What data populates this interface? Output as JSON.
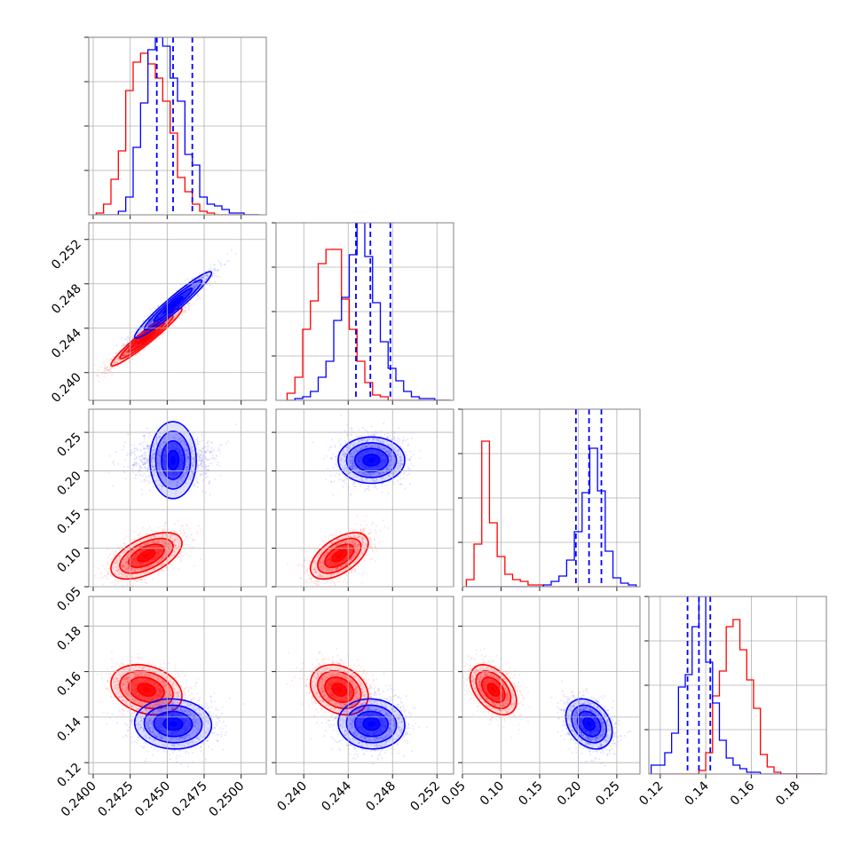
{
  "chart_data": {
    "type": "corner",
    "colors": {
      "red_sample": "#ff0000",
      "blue_sample": "#0000ff"
    },
    "params": [
      {
        "range": [
          0.2397,
          0.2517
        ],
        "ticks": [
          0.24,
          0.2425,
          0.245,
          0.2475,
          0.25
        ],
        "tick_labels": [
          "0.2400",
          "0.2425",
          "0.2450",
          "0.2475",
          "0.2500"
        ]
      },
      {
        "range": [
          0.2375,
          0.2535
        ],
        "ticks": [
          0.24,
          0.244,
          0.248,
          0.252
        ],
        "tick_labels": [
          "0.240",
          "0.244",
          "0.248",
          "0.252"
        ]
      },
      {
        "range": [
          0.05,
          0.28
        ],
        "ticks": [
          0.05,
          0.1,
          0.15,
          0.2,
          0.25
        ],
        "tick_labels": [
          "0.05",
          "0.10",
          "0.15",
          "0.20",
          "0.25"
        ]
      },
      {
        "range": [
          0.115,
          0.193
        ],
        "ticks": [
          0.12,
          0.14,
          0.16,
          0.18
        ],
        "tick_labels": [
          "0.12",
          "0.14",
          "0.16",
          "0.18"
        ]
      }
    ],
    "samples": [
      {
        "name": "",
        "color": "#ff0000",
        "mean": [
          0.2436,
          0.2432,
          0.09,
          0.152
        ],
        "sd": [
          0.0012,
          0.0013,
          0.015,
          0.0055
        ]
      },
      {
        "name": "",
        "color": "#0000ff",
        "mean": [
          0.2454,
          0.2461,
          0.214,
          0.137
        ],
        "sd": [
          0.0013,
          0.0015,
          0.015,
          0.0055
        ]
      }
    ],
    "quantile_lines": {
      "color": "#0000ff",
      "values": [
        [
          0.2443,
          0.2454,
          0.2467
        ],
        [
          0.2447,
          0.246,
          0.2478
        ],
        [
          0.197,
          0.214,
          0.23
        ],
        [
          0.132,
          0.137,
          0.142
        ]
      ]
    },
    "histograms": [
      {
        "bins": [
          0.2402,
          0.2407,
          0.2412,
          0.2417,
          0.2422,
          0.2427,
          0.2432,
          0.2437,
          0.2442,
          0.2447,
          0.2452,
          0.2457,
          0.2462,
          0.2467,
          0.2472,
          0.2477,
          0.2482,
          0.2487,
          0.2492,
          0.2497,
          0.2502,
          0.2507,
          0.2512
        ],
        "red": [
          0.01,
          0.06,
          0.2,
          0.36,
          0.7,
          0.86,
          0.91,
          0.85,
          0.77,
          0.64,
          0.46,
          0.21,
          0.13,
          0.06,
          0.02,
          0.01,
          0,
          0,
          0,
          0,
          0,
          0
        ],
        "blue": [
          0,
          0,
          0,
          0.02,
          0.1,
          0.38,
          0.63,
          0.93,
          1.0,
          0.95,
          0.77,
          0.64,
          0.34,
          0.28,
          0.1,
          0.06,
          0.05,
          0.03,
          0.01,
          0.01,
          0,
          0
        ]
      },
      {
        "bins": [
          0.2385,
          0.2392,
          0.2399,
          0.2406,
          0.2413,
          0.242,
          0.2427,
          0.2434,
          0.2441,
          0.2448,
          0.2455,
          0.2462,
          0.2469,
          0.2476,
          0.2483,
          0.249,
          0.2497,
          0.2504,
          0.2511,
          0.2518,
          0.2525,
          0.2532
        ],
        "red": [
          0.04,
          0.13,
          0.4,
          0.56,
          0.77,
          0.85,
          0.85,
          0.57,
          0.4,
          0.22,
          0.1,
          0.03,
          0.02,
          0,
          0,
          0,
          0,
          0,
          0,
          0,
          0
        ],
        "blue": [
          0,
          0.01,
          0.02,
          0.05,
          0.13,
          0.22,
          0.45,
          0.58,
          0.82,
          1.0,
          0.81,
          0.55,
          0.33,
          0.18,
          0.11,
          0.05,
          0.02,
          0.01,
          0.01,
          0,
          0
        ]
      },
      {
        "bins": [
          0.055,
          0.065,
          0.075,
          0.085,
          0.095,
          0.105,
          0.115,
          0.125,
          0.135,
          0.145,
          0.155,
          0.165,
          0.175,
          0.185,
          0.195,
          0.205,
          0.215,
          0.225,
          0.235,
          0.245,
          0.255,
          0.265,
          0.275
        ],
        "red": [
          0.04,
          0.24,
          0.82,
          0.36,
          0.17,
          0.07,
          0.04,
          0.03,
          0.01,
          0.01,
          0,
          0,
          0,
          0,
          0,
          0,
          0,
          0,
          0,
          0,
          0,
          0
        ],
        "blue": [
          0,
          0,
          0,
          0,
          0,
          0,
          0,
          0,
          0,
          0,
          0.01,
          0.03,
          0.06,
          0.15,
          0.31,
          0.53,
          0.78,
          0.54,
          0.2,
          0.05,
          0.02,
          0.01
        ]
      },
      {
        "bins": [
          0.116,
          0.119,
          0.122,
          0.125,
          0.128,
          0.131,
          0.134,
          0.137,
          0.14,
          0.143,
          0.146,
          0.149,
          0.152,
          0.155,
          0.158,
          0.161,
          0.164,
          0.167,
          0.17,
          0.173,
          0.176,
          0.179,
          0.182,
          0.185,
          0.188,
          0.191
        ],
        "red": [
          0,
          0,
          0,
          0,
          0,
          0,
          0,
          0.02,
          0.12,
          0.44,
          0.58,
          0.83,
          0.87,
          0.7,
          0.53,
          0.37,
          0.11,
          0.04,
          0.01,
          0,
          0,
          0,
          0,
          0,
          0
        ],
        "blue": [
          0.05,
          0.05,
          0.12,
          0.23,
          0.49,
          0.56,
          0.83,
          1.0,
          0.63,
          0.4,
          0.19,
          0.09,
          0.05,
          0.03,
          0.01,
          0.01,
          0,
          0,
          0,
          0,
          0,
          0,
          0,
          0,
          0
        ]
      }
    ]
  }
}
